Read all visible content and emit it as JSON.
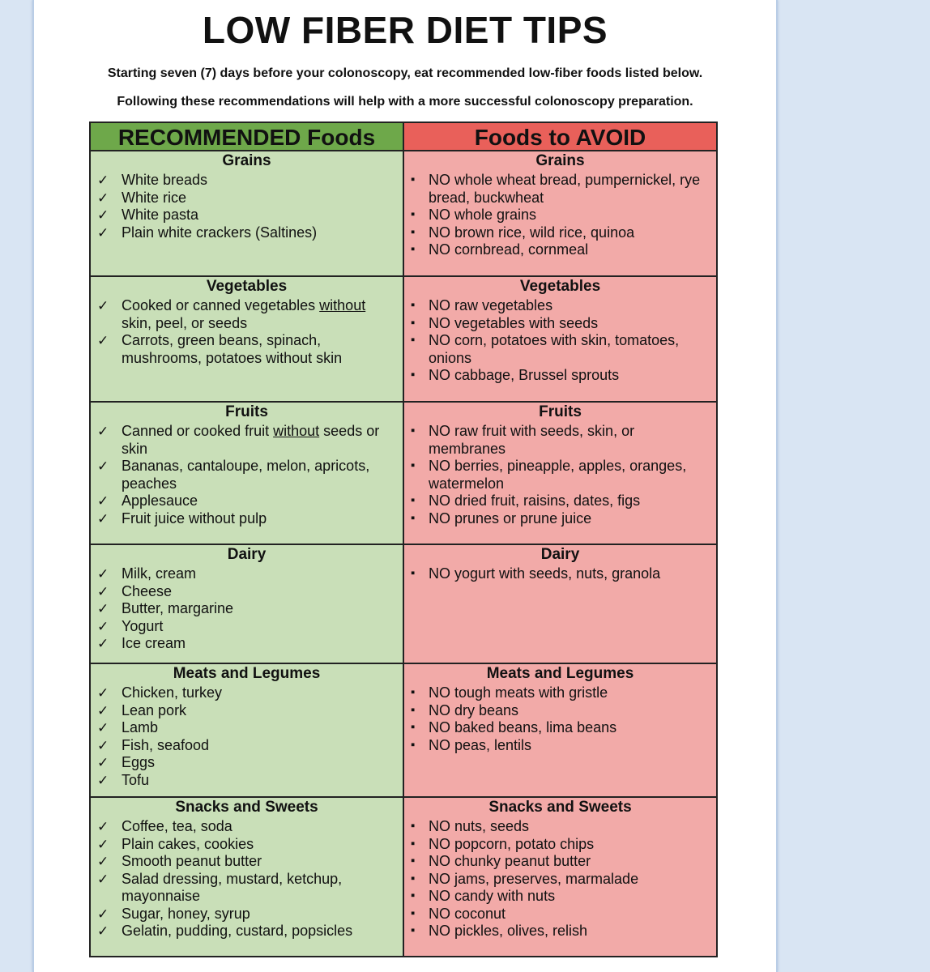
{
  "document": {
    "title": "LOW FIBER DIET TIPS",
    "subtitle1": "Starting seven (7) days before your colonoscopy, eat recommended low-fiber foods listed below.",
    "subtitle2": "Following these recommendations will help with a more successful colonoscopy preparation."
  },
  "table": {
    "left_header": "RECOMMENDED Foods",
    "right_header": "Foods to AVOID",
    "left_color": "#6ea84a",
    "right_color": "#e9605a",
    "left_cell_color": "#c9dfb8",
    "right_cell_color": "#f2aaa8",
    "check_icon": "✓",
    "bullet_icon": "▪",
    "sections": [
      {
        "category": "Grains",
        "recommended": [
          "White breads",
          "White rice",
          "White pasta",
          "Plain white crackers (Saltines)"
        ],
        "avoid": [
          "NO whole wheat bread, pumpernickel, rye bread, buckwheat",
          "NO whole grains",
          "NO brown rice, wild rice, quinoa",
          "NO cornbread, cornmeal"
        ]
      },
      {
        "category": "Vegetables",
        "recommended": [
          {
            "pre": "Cooked or canned vegetables ",
            "u": "without",
            "post": " skin, peel, or seeds"
          },
          "Carrots, green beans, spinach, mushrooms, potatoes without skin"
        ],
        "avoid": [
          "NO raw vegetables",
          "NO vegetables with seeds",
          "NO corn, potatoes with skin, tomatoes, onions",
          "NO cabbage, Brussel sprouts"
        ]
      },
      {
        "category": "Fruits",
        "recommended": [
          {
            "pre": "Canned or cooked fruit ",
            "u": "without",
            "post": " seeds or skin"
          },
          "Bananas, cantaloupe, melon, apricots, peaches",
          "Applesauce",
          "Fruit juice without pulp"
        ],
        "avoid": [
          "NO raw fruit with seeds, skin, or membranes",
          "NO berries, pineapple, apples, oranges, watermelon",
          "NO dried fruit, raisins, dates, figs",
          "NO prunes or prune juice"
        ]
      },
      {
        "category": "Dairy",
        "recommended": [
          "Milk, cream",
          "Cheese",
          "Butter, margarine",
          "Yogurt",
          "Ice cream"
        ],
        "avoid": [
          "NO yogurt with seeds, nuts, granola"
        ]
      },
      {
        "category": "Meats and Legumes",
        "recommended": [
          "Chicken, turkey",
          "Lean pork",
          "Lamb",
          "Fish, seafood",
          "Eggs",
          "Tofu"
        ],
        "avoid": [
          "NO tough meats with gristle",
          "NO dry beans",
          "NO baked beans, lima beans",
          "NO peas, lentils"
        ]
      },
      {
        "category": "Snacks and Sweets",
        "recommended": [
          "Coffee, tea, soda",
          "Plain cakes, cookies",
          "Smooth peanut butter",
          "Salad dressing, mustard, ketchup, mayonnaise",
          "Sugar, honey, syrup",
          "Gelatin, pudding, custard, popsicles"
        ],
        "avoid": [
          "NO nuts, seeds",
          "NO popcorn, potato chips",
          "NO chunky peanut butter",
          "NO jams, preserves, marmalade",
          "NO candy with nuts",
          "NO coconut",
          "NO pickles, olives, relish"
        ]
      }
    ]
  }
}
